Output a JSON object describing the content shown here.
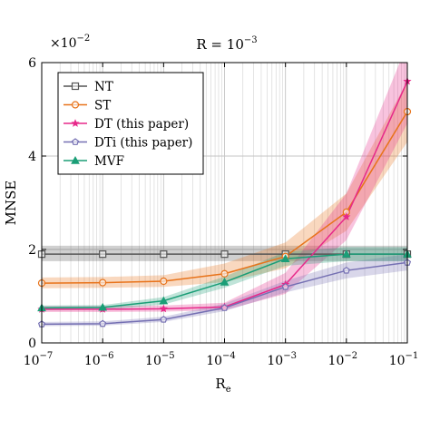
{
  "chart_data": {
    "type": "line",
    "title": "R = 10⁻³",
    "title_parts": {
      "base": "R = 10",
      "exp": "−3"
    },
    "multiplier_label": {
      "base": "×10",
      "exp": "−2"
    },
    "xlabel": {
      "main": "R",
      "sub": "e"
    },
    "ylabel": "MNSE",
    "x_scale": "log",
    "xlim": [
      1e-07,
      0.1
    ],
    "ylim": [
      0,
      6
    ],
    "y_multiplier": 0.01,
    "grid": true,
    "legend_position": "top-left",
    "x_ticks": [
      {
        "value": 1e-07,
        "base": "10",
        "exp": "−7"
      },
      {
        "value": 1e-06,
        "base": "10",
        "exp": "−6"
      },
      {
        "value": 1e-05,
        "base": "10",
        "exp": "−5"
      },
      {
        "value": 0.0001,
        "base": "10",
        "exp": "−4"
      },
      {
        "value": 0.001,
        "base": "10",
        "exp": "−3"
      },
      {
        "value": 0.01,
        "base": "10",
        "exp": "−2"
      },
      {
        "value": 0.1,
        "base": "10",
        "exp": "−1"
      }
    ],
    "y_ticks": [
      {
        "value": 0,
        "label": "0"
      },
      {
        "value": 2,
        "label": "2"
      },
      {
        "value": 4,
        "label": "4"
      },
      {
        "value": 6,
        "label": "6"
      }
    ],
    "x": [
      1e-07,
      1e-06,
      1e-05,
      0.0001,
      0.001,
      0.01,
      0.1
    ],
    "series": [
      {
        "name": "NT",
        "color": "#555555",
        "marker": "square",
        "values": [
          1.9,
          1.9,
          1.9,
          1.9,
          1.9,
          1.9,
          1.9
        ],
        "lower": [
          1.75,
          1.75,
          1.75,
          1.75,
          1.75,
          1.75,
          1.75
        ],
        "upper": [
          2.08,
          2.08,
          2.08,
          2.08,
          2.08,
          2.08,
          2.08
        ]
      },
      {
        "name": "ST",
        "color": "#e8731a",
        "marker": "circle",
        "values": [
          1.28,
          1.29,
          1.32,
          1.48,
          1.85,
          2.8,
          4.95
        ],
        "lower": [
          1.17,
          1.18,
          1.2,
          1.3,
          1.6,
          2.4,
          4.3
        ],
        "upper": [
          1.4,
          1.41,
          1.45,
          1.7,
          2.15,
          3.2,
          5.6
        ]
      },
      {
        "name": "DT (this paper)",
        "color": "#e7298a",
        "marker": "star",
        "values": [
          0.72,
          0.72,
          0.73,
          0.77,
          1.25,
          2.7,
          5.6
        ],
        "lower": [
          0.66,
          0.66,
          0.67,
          0.7,
          1.05,
          2.2,
          4.7
        ],
        "upper": [
          0.79,
          0.79,
          0.8,
          0.86,
          1.5,
          3.2,
          6.4
        ]
      },
      {
        "name": "DTi (this paper)",
        "color": "#7570b3",
        "marker": "pentagon",
        "values": [
          0.4,
          0.41,
          0.5,
          0.75,
          1.2,
          1.55,
          1.72
        ],
        "lower": [
          0.36,
          0.37,
          0.45,
          0.68,
          1.08,
          1.38,
          1.55
        ],
        "upper": [
          0.45,
          0.46,
          0.56,
          0.84,
          1.33,
          1.72,
          1.9
        ]
      },
      {
        "name": "MVF",
        "color": "#1b9e77",
        "marker": "triangle",
        "values": [
          0.75,
          0.76,
          0.9,
          1.3,
          1.8,
          1.9,
          1.9
        ],
        "lower": [
          0.7,
          0.71,
          0.82,
          1.18,
          1.65,
          1.75,
          1.75
        ],
        "upper": [
          0.8,
          0.81,
          0.98,
          1.42,
          1.95,
          2.05,
          2.05
        ]
      }
    ]
  }
}
